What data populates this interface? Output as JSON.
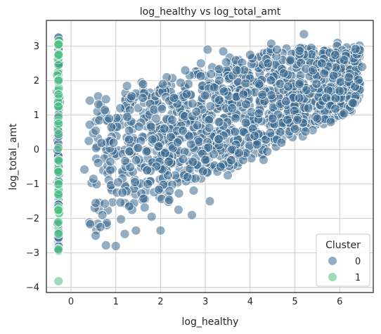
{
  "chart_data": {
    "type": "scatter",
    "title": "log_healthy vs log_total_amt",
    "xlabel": "log_healthy",
    "ylabel": "log_total_amt",
    "xlim": [
      -0.55,
      6.75
    ],
    "ylim": [
      -4.15,
      3.75
    ],
    "xticks": [
      0,
      1,
      2,
      3,
      4,
      5,
      6
    ],
    "yticks": [
      -4,
      -3,
      -2,
      -1,
      0,
      1,
      2,
      3
    ],
    "grid": true,
    "legend": {
      "title": "Cluster",
      "placement": "bottom-right",
      "entries": [
        {
          "label": "0",
          "color": "#3b6a8f"
        },
        {
          "label": "1",
          "color": "#4cbf84"
        }
      ]
    },
    "series": [
      {
        "name": "0",
        "color": "#3b6a8f",
        "sample_points": [
          [
            -0.28,
            3.25
          ],
          [
            -0.28,
            2.9
          ],
          [
            -0.28,
            2.2
          ],
          [
            -0.28,
            1.5
          ],
          [
            -0.28,
            -0.9
          ],
          [
            -0.28,
            -1.6
          ],
          [
            -0.28,
            -2.3
          ],
          [
            -0.28,
            -2.95
          ],
          [
            0.3,
            -0.58
          ],
          [
            0.42,
            1.42
          ],
          [
            0.5,
            -0.85
          ],
          [
            0.55,
            0.55
          ],
          [
            0.55,
            -1.55
          ],
          [
            0.55,
            -2.5
          ],
          [
            0.7,
            -1.9
          ],
          [
            0.78,
            -2.78
          ],
          [
            0.85,
            0.9
          ],
          [
            0.88,
            -0.35
          ],
          [
            0.9,
            0.65
          ],
          [
            0.95,
            0.2
          ],
          [
            1.0,
            -2.8
          ],
          [
            1.05,
            -0.95
          ],
          [
            1.1,
            1.2
          ],
          [
            1.15,
            -1.25
          ],
          [
            1.2,
            -2.45
          ],
          [
            1.25,
            1.85
          ],
          [
            1.3,
            0.55
          ],
          [
            1.3,
            -1.65
          ],
          [
            1.45,
            -2.35
          ],
          [
            1.5,
            0.05
          ],
          [
            1.6,
            1.5
          ],
          [
            1.7,
            -0.6
          ],
          [
            1.8,
            -1.95
          ],
          [
            1.9,
            0.9
          ],
          [
            2.0,
            -2.35
          ],
          [
            2.05,
            1.9
          ],
          [
            2.1,
            -0.1
          ],
          [
            2.2,
            -1.2
          ],
          [
            2.3,
            1.5
          ],
          [
            2.4,
            -1.75
          ],
          [
            2.5,
            0.55
          ],
          [
            2.55,
            2.3
          ],
          [
            2.6,
            -0.8
          ],
          [
            2.7,
            -1.9
          ],
          [
            2.8,
            1.1
          ],
          [
            2.9,
            2.5
          ],
          [
            3.0,
            -0.3
          ],
          [
            3.05,
            2.9
          ],
          [
            3.1,
            -1.5
          ],
          [
            3.2,
            1.8
          ],
          [
            3.3,
            0.3
          ],
          [
            3.4,
            2.85
          ],
          [
            3.5,
            -0.75
          ],
          [
            3.6,
            1.2
          ],
          [
            3.7,
            2.3
          ],
          [
            3.75,
            -0.1
          ],
          [
            3.85,
            1.6
          ],
          [
            4.0,
            2.75
          ],
          [
            4.1,
            0.4
          ],
          [
            4.2,
            1.9
          ],
          [
            4.3,
            -0.3
          ],
          [
            4.4,
            2.5
          ],
          [
            4.5,
            0.9
          ],
          [
            4.6,
            2.9
          ],
          [
            4.7,
            0.2
          ],
          [
            4.8,
            1.4
          ],
          [
            4.9,
            2.6
          ],
          [
            5.0,
            0.6
          ],
          [
            5.1,
            1.9
          ],
          [
            5.2,
            3.35
          ],
          [
            5.3,
            1.2
          ],
          [
            5.4,
            2.3
          ],
          [
            5.5,
            0.9
          ],
          [
            5.6,
            2.5
          ],
          [
            5.7,
            1.5
          ],
          [
            5.8,
            0.8
          ],
          [
            5.9,
            2.75
          ],
          [
            6.0,
            1.7
          ],
          [
            6.1,
            1.05
          ],
          [
            6.2,
            2.1
          ],
          [
            6.3,
            1.35
          ],
          [
            6.5,
            2.4
          ]
        ]
      },
      {
        "name": "1",
        "color": "#4cbf84",
        "sample_points": [
          [
            -0.28,
            3.05
          ],
          [
            -0.28,
            2.75
          ],
          [
            -0.28,
            2.45
          ],
          [
            -0.28,
            2.0
          ],
          [
            -0.28,
            1.6
          ],
          [
            -0.28,
            1.25
          ],
          [
            -0.28,
            0.95
          ],
          [
            -0.28,
            0.75
          ],
          [
            -0.28,
            0.45
          ],
          [
            -0.28,
            0.05
          ],
          [
            -0.28,
            -0.3
          ],
          [
            -0.28,
            -0.65
          ],
          [
            -0.28,
            -1.0
          ],
          [
            -0.28,
            -1.3
          ],
          [
            -0.28,
            -1.75
          ],
          [
            -0.28,
            -2.1
          ],
          [
            -0.28,
            -2.45
          ],
          [
            -0.28,
            -2.9
          ],
          [
            -0.28,
            -3.82
          ]
        ]
      }
    ]
  }
}
